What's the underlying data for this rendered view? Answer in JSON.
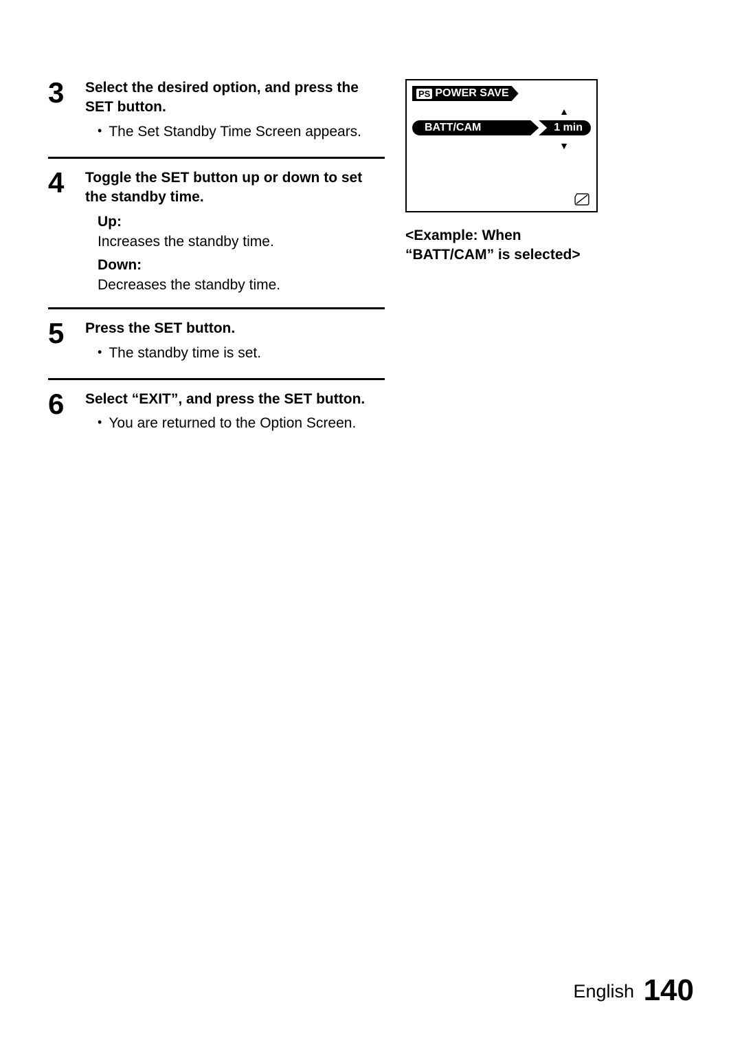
{
  "steps": [
    {
      "num": "3",
      "title": "Select the desired option, and press the SET button.",
      "items": [
        {
          "type": "bullet",
          "text": "The Set Standby Time Screen appears."
        }
      ]
    },
    {
      "num": "4",
      "title": "Toggle the SET button up or down to set the standby time.",
      "items": [
        {
          "type": "label",
          "text": "Up:"
        },
        {
          "type": "plain",
          "text": "Increases the standby time."
        },
        {
          "type": "label",
          "text": "Down:"
        },
        {
          "type": "plain",
          "text": "Decreases the standby time."
        }
      ]
    },
    {
      "num": "5",
      "title": "Press the SET button.",
      "items": [
        {
          "type": "bullet",
          "text": "The standby time is set."
        }
      ]
    },
    {
      "num": "6",
      "title": "Select “EXIT”, and press the SET button.",
      "items": [
        {
          "type": "bullet",
          "text": "You are returned to the Option Screen."
        }
      ]
    }
  ],
  "screen": {
    "ps_tag": "PS",
    "title": "POWER SAVE",
    "selected_label": "BATT/CAM",
    "selected_value": "1 min",
    "arrow_up": "▲",
    "arrow_down": "▼"
  },
  "caption": "<Example: When “BATT/CAM” is selected>",
  "footer": {
    "lang": "English",
    "page": "140"
  }
}
